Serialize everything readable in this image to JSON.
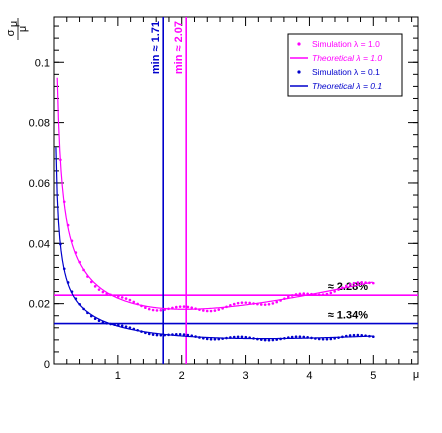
{
  "chart_data": {
    "type": "scatter",
    "xlabel": "μ",
    "ylabel_num": "σ",
    "ylabel_sub": "μ",
    "ylabel_den": "μ",
    "xlim": [
      0,
      5.7
    ],
    "ylim": [
      0,
      0.115
    ],
    "x_ticks": [
      {
        "v": 1,
        "label": "1"
      },
      {
        "v": 2,
        "label": "2"
      },
      {
        "v": 3,
        "label": "3"
      },
      {
        "v": 4,
        "label": "4"
      },
      {
        "v": 5,
        "label": "5"
      }
    ],
    "y_ticks": [
      {
        "v": 0,
        "label": "0"
      },
      {
        "v": 0.02,
        "label": "0.02"
      },
      {
        "v": 0.04,
        "label": "0.04"
      },
      {
        "v": 0.06,
        "label": "0.06"
      },
      {
        "v": 0.08,
        "label": "0.08"
      },
      {
        "v": 0.1,
        "label": "0.1"
      }
    ],
    "series": [
      {
        "name": "Simulation λ = 1.0",
        "kind": "points",
        "color": "#ff00ff",
        "lambda": 1.0,
        "x_range": [
          0.1,
          5.0
        ],
        "n": 82
      },
      {
        "name": "Theoretical λ = 1.0",
        "kind": "line",
        "color": "#ff00ff",
        "lambda": 1.0,
        "italic": true
      },
      {
        "name": "Simulation λ = 0.1",
        "kind": "points",
        "color": "#0000cc",
        "lambda": 0.1,
        "x_range": [
          0.1,
          5.0
        ],
        "n": 82
      },
      {
        "name": "Theoretical λ = 0.1",
        "kind": "line",
        "color": "#0000cc",
        "lambda": 0.1,
        "italic": true
      }
    ],
    "vertical_lines": [
      {
        "x": 1.71,
        "label": "min ≈ 1.71",
        "color": "#0000cc"
      },
      {
        "x": 2.07,
        "label": "min ≈ 2.07",
        "color": "#ff00ff"
      }
    ],
    "horizontal_lines": [
      {
        "y": 0.0228,
        "label": "≈ 2.28%",
        "color": "#ff00ff"
      },
      {
        "y": 0.0134,
        "label": "≈ 1.34%",
        "color": "#0000cc"
      }
    ],
    "legend_position": "top-right"
  }
}
